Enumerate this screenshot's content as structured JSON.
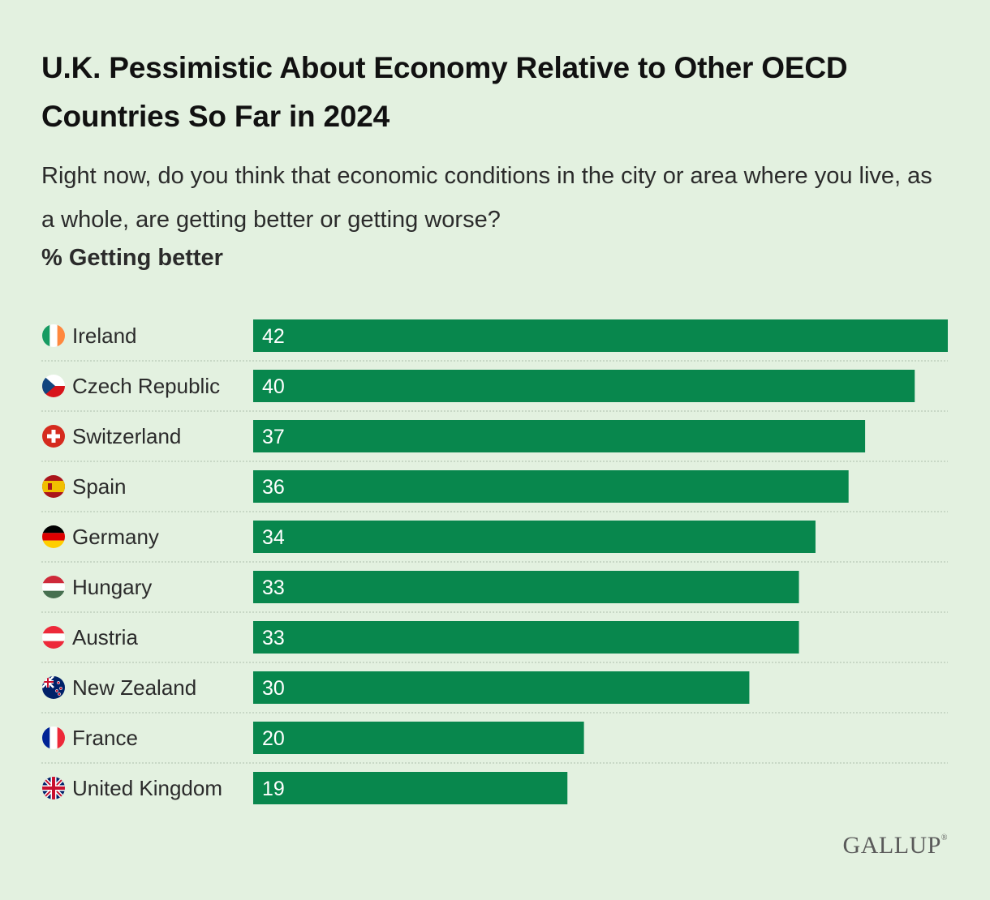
{
  "title": "U.K. Pessimistic About Economy Relative to Other OECD Countries So Far in 2024",
  "subtitle": "Right now, do you think that economic conditions in the city or area where you live, as a whole, are getting better or getting worse?",
  "measure_label": "% Getting better",
  "logo": "GALLUP",
  "colors": {
    "background": "#e3f1e0",
    "bar": "#08874d",
    "bar_label": "#ffffff",
    "row_divider": "#b9c9b6"
  },
  "chart_data": {
    "type": "bar",
    "orientation": "horizontal",
    "categories": [
      "Ireland",
      "Czech Republic",
      "Switzerland",
      "Spain",
      "Germany",
      "Hungary",
      "Austria",
      "New Zealand",
      "France",
      "United Kingdom"
    ],
    "values": [
      42,
      40,
      37,
      36,
      34,
      33,
      33,
      30,
      20,
      19
    ],
    "flag_icons": [
      "ireland-flag-icon",
      "czech-republic-flag-icon",
      "switzerland-flag-icon",
      "spain-flag-icon",
      "germany-flag-icon",
      "hungary-flag-icon",
      "austria-flag-icon",
      "new-zealand-flag-icon",
      "france-flag-icon",
      "united-kingdom-flag-icon"
    ],
    "xlim": [
      0,
      42
    ],
    "grid": false,
    "legend": "none"
  }
}
